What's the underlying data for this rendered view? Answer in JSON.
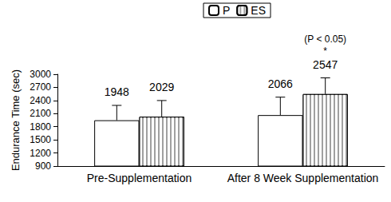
{
  "chart_data": {
    "type": "bar",
    "y_label": "Endurance Time (sec)",
    "categories": [
      "Pre-Supplementation",
      "After 8 Week Supplementation"
    ],
    "series": [
      {
        "name": "P",
        "color": "#ffffff",
        "values": [
          1948,
          2066
        ],
        "errors": [
          340,
          410
        ]
      },
      {
        "name": "ES",
        "color": "#a0a0a0",
        "values": [
          2029,
          2547
        ],
        "errors": [
          370,
          370
        ]
      }
    ],
    "ylim": [
      900,
      3000
    ],
    "yticks": [
      900,
      1200,
      1500,
      1800,
      2100,
      2400,
      2700,
      3000
    ],
    "grid": false,
    "data_labels": true,
    "legend": "top",
    "annotations": [
      {
        "text": "(P < 0.05)",
        "category": "After 8 Week Supplementation",
        "series": "ES"
      },
      {
        "text": "*",
        "category": "After 8 Week Supplementation",
        "series": "ES"
      }
    ]
  }
}
